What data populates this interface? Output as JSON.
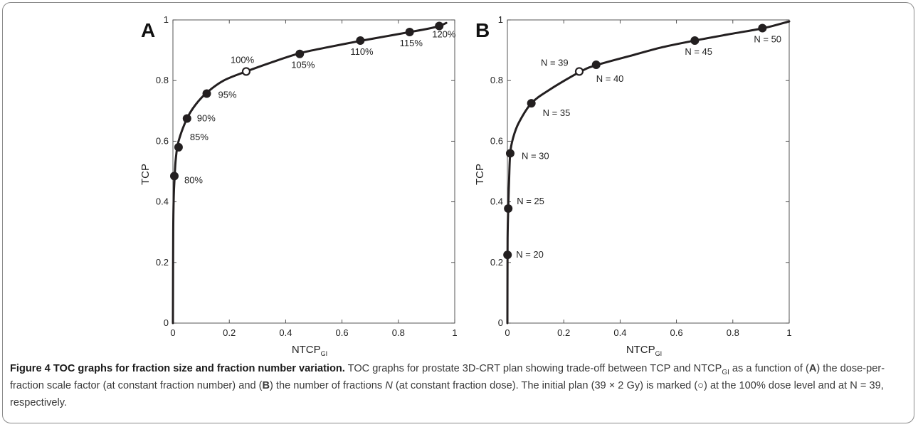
{
  "chart_data": [
    {
      "type": "line",
      "panel_label": "A",
      "xlabel": "NTCP",
      "xlabel_sub": "GI",
      "ylabel": "TCP",
      "xlim": [
        0,
        1
      ],
      "ylim": [
        0,
        1
      ],
      "xticks": [
        "0",
        "0.2",
        "0.4",
        "0.6",
        "0.8",
        "1"
      ],
      "yticks": [
        "0",
        "0.2",
        "0.4",
        "0.6",
        "0.8",
        "1"
      ],
      "grid": false,
      "curve": {
        "x": [
          0,
          0.001,
          0.003,
          0.006,
          0.01,
          0.02,
          0.05,
          0.08,
          0.12,
          0.18,
          0.26,
          0.35,
          0.45,
          0.55,
          0.66,
          0.75,
          0.84,
          0.9,
          0.945,
          0.97
        ],
        "y": [
          0,
          0.3,
          0.42,
          0.48,
          0.54,
          0.6,
          0.675,
          0.72,
          0.76,
          0.8,
          0.83,
          0.86,
          0.89,
          0.91,
          0.93,
          0.945,
          0.96,
          0.97,
          0.98,
          0.99
        ]
      },
      "points": [
        {
          "label": "80%",
          "x": 0.005,
          "y": 0.485,
          "filled": true
        },
        {
          "label": "85%",
          "x": 0.02,
          "y": 0.58,
          "filled": true
        },
        {
          "label": "90%",
          "x": 0.05,
          "y": 0.675,
          "filled": true
        },
        {
          "label": "95%",
          "x": 0.12,
          "y": 0.757,
          "filled": true
        },
        {
          "label": "100%",
          "x": 0.26,
          "y": 0.83,
          "filled": false
        },
        {
          "label": "105%",
          "x": 0.45,
          "y": 0.888,
          "filled": true
        },
        {
          "label": "110%",
          "x": 0.665,
          "y": 0.932,
          "filled": true
        },
        {
          "label": "115%",
          "x": 0.84,
          "y": 0.96,
          "filled": true
        },
        {
          "label": "120%",
          "x": 0.945,
          "y": 0.98,
          "filled": true
        }
      ]
    },
    {
      "type": "line",
      "panel_label": "B",
      "xlabel": "NTCP",
      "xlabel_sub": "GI",
      "ylabel": "TCP",
      "xlim": [
        0,
        1
      ],
      "ylim": [
        0,
        1
      ],
      "xticks": [
        "0",
        "0.2",
        "0.4",
        "0.6",
        "0.8",
        "1"
      ],
      "yticks": [
        "0",
        "0.2",
        "0.4",
        "0.6",
        "0.8",
        "1"
      ],
      "grid": false,
      "curve": {
        "x": [
          0,
          0.0005,
          0.001,
          0.003,
          0.006,
          0.01,
          0.02,
          0.04,
          0.085,
          0.15,
          0.26,
          0.32,
          0.45,
          0.55,
          0.665,
          0.8,
          0.91,
          1.0
        ],
        "y": [
          0,
          0.22,
          0.3,
          0.38,
          0.47,
          0.56,
          0.61,
          0.66,
          0.725,
          0.77,
          0.83,
          0.852,
          0.885,
          0.91,
          0.932,
          0.955,
          0.973,
          0.995
        ]
      },
      "points": [
        {
          "label": "N = 20",
          "x": 0.0005,
          "y": 0.225,
          "filled": true
        },
        {
          "label": "N = 25",
          "x": 0.003,
          "y": 0.378,
          "filled": true
        },
        {
          "label": "N = 30",
          "x": 0.01,
          "y": 0.56,
          "filled": true
        },
        {
          "label": "N = 35",
          "x": 0.085,
          "y": 0.725,
          "filled": true
        },
        {
          "label": "N = 39",
          "x": 0.255,
          "y": 0.83,
          "filled": false
        },
        {
          "label": "N = 40",
          "x": 0.315,
          "y": 0.852,
          "filled": true
        },
        {
          "label": "N = 45",
          "x": 0.665,
          "y": 0.932,
          "filled": true
        },
        {
          "label": "N = 50",
          "x": 0.905,
          "y": 0.973,
          "filled": true
        }
      ]
    }
  ],
  "caption": {
    "title": "Figure 4 TOC graphs for fraction size and fraction number variation.",
    "part1": " TOC graphs for prostate 3D-CRT plan showing trade-off between TCP and NTCP",
    "sub": "GI",
    "part2": " as a function of (",
    "labelA": "A",
    "part3": ") the dose-per-fraction scale factor (at constant fraction number) and (",
    "labelB": "B",
    "part4": ") the number of fractions ",
    "italic_n": "N",
    "part5": " (at constant fraction dose). The initial plan (39 × 2 Gy) is marked (○) at the 100% dose level and at N = 39, respectively."
  },
  "colors": {
    "curve": "#231f20",
    "marker": "#231f20",
    "open_marker_fill": "#ffffff"
  }
}
